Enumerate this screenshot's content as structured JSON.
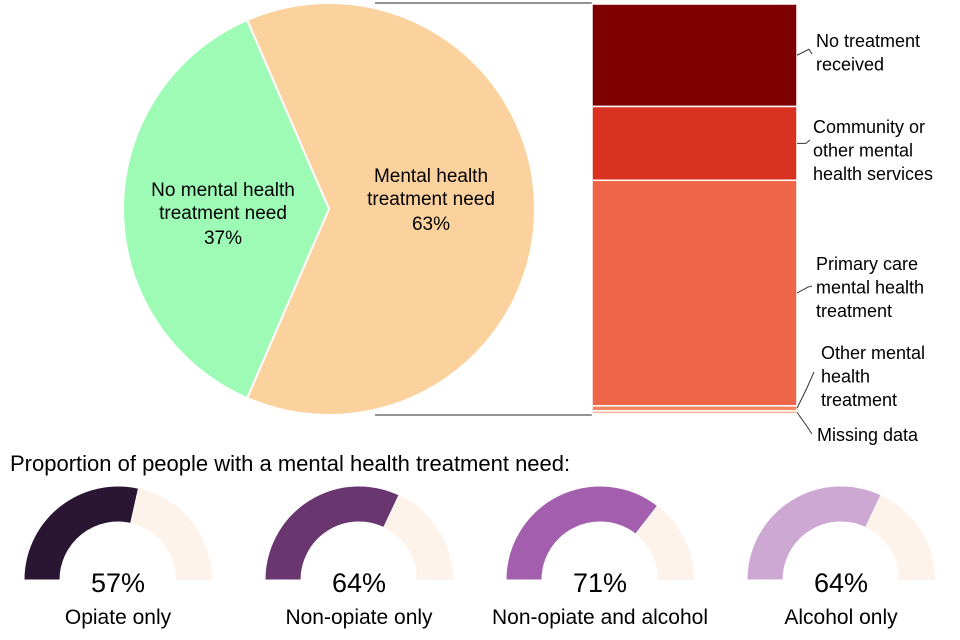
{
  "chart_data": [
    {
      "type": "pie",
      "slices": [
        {
          "label_lines": [
            "No mental health",
            "treatment need"
          ],
          "value": 37,
          "value_label": "37%",
          "color": "#9efbb6"
        },
        {
          "label_lines": [
            "Mental health",
            "treatment need"
          ],
          "value": 63,
          "value_label": "63%",
          "color": "#fbd29e"
        }
      ]
    },
    {
      "type": "bar",
      "stacked": true,
      "segments": [
        {
          "label_lines": [
            "No treatment",
            "received"
          ],
          "value": 25,
          "color": "#7f0000"
        },
        {
          "label_lines": [
            "Community or",
            "other mental",
            "health services"
          ],
          "value": 18,
          "color": "#d93220"
        },
        {
          "label_lines": [
            "Primary care",
            "mental health",
            "treatment"
          ],
          "value": 55,
          "color": "#ee6548"
        },
        {
          "label_lines": [
            "Other mental",
            "health",
            "treatment"
          ],
          "value": 1.2,
          "color": "#f4845c"
        },
        {
          "label_lines": [
            "Missing data"
          ],
          "value": 0.8,
          "color": "#fcbba1"
        }
      ]
    },
    {
      "type": "gauge",
      "title": "Proportion of people with a mental health treatment need:",
      "track_color": "#fdf3ea",
      "items": [
        {
          "label": "Opiate only",
          "value": 57,
          "value_label": "57%",
          "color": "#2a1532"
        },
        {
          "label": "Non-opiate only",
          "value": 64,
          "value_label": "64%",
          "color": "#6a3670"
        },
        {
          "label": "Non-opiate and alcohol",
          "value": 71,
          "value_label": "71%",
          "color": "#a35fae"
        },
        {
          "label": "Alcohol only",
          "value": 64,
          "value_label": "64%",
          "color": "#cca8d2"
        }
      ]
    }
  ]
}
